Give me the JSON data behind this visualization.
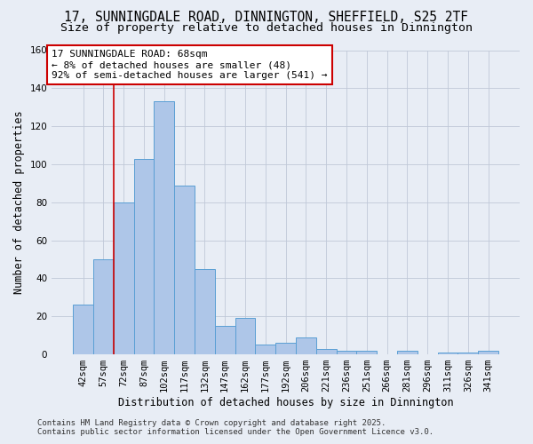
{
  "title_line1": "17, SUNNINGDALE ROAD, DINNINGTON, SHEFFIELD, S25 2TF",
  "title_line2": "Size of property relative to detached houses in Dinnington",
  "xlabel": "Distribution of detached houses by size in Dinnington",
  "ylabel": "Number of detached properties",
  "bar_labels": [
    "42sqm",
    "57sqm",
    "72sqm",
    "87sqm",
    "102sqm",
    "117sqm",
    "132sqm",
    "147sqm",
    "162sqm",
    "177sqm",
    "192sqm",
    "206sqm",
    "221sqm",
    "236sqm",
    "251sqm",
    "266sqm",
    "281sqm",
    "296sqm",
    "311sqm",
    "326sqm",
    "341sqm"
  ],
  "bar_values": [
    26,
    50,
    80,
    103,
    133,
    89,
    45,
    15,
    19,
    5,
    6,
    9,
    3,
    2,
    2,
    0,
    2,
    0,
    1,
    1,
    2
  ],
  "bar_color": "#aec6e8",
  "bar_edge_color": "#5a9fd4",
  "grid_color": "#c0c8d8",
  "background_color": "#e8edf5",
  "annotation_box_color": "#ffffff",
  "annotation_border_color": "#cc0000",
  "vertical_line_color": "#cc0000",
  "vertical_line_x": 1.5,
  "annotation_text_line1": "17 SUNNINGDALE ROAD: 68sqm",
  "annotation_text_line2": "← 8% of detached houses are smaller (48)",
  "annotation_text_line3": "92% of semi-detached houses are larger (541) →",
  "ylim": [
    0,
    160
  ],
  "yticks": [
    0,
    20,
    40,
    60,
    80,
    100,
    120,
    140,
    160
  ],
  "footer_line1": "Contains HM Land Registry data © Crown copyright and database right 2025.",
  "footer_line2": "Contains public sector information licensed under the Open Government Licence v3.0.",
  "title_fontsize": 10.5,
  "subtitle_fontsize": 9.5,
  "tick_fontsize": 7.5,
  "ylabel_fontsize": 8.5,
  "xlabel_fontsize": 8.5,
  "annotation_fontsize": 8,
  "footer_fontsize": 6.5
}
